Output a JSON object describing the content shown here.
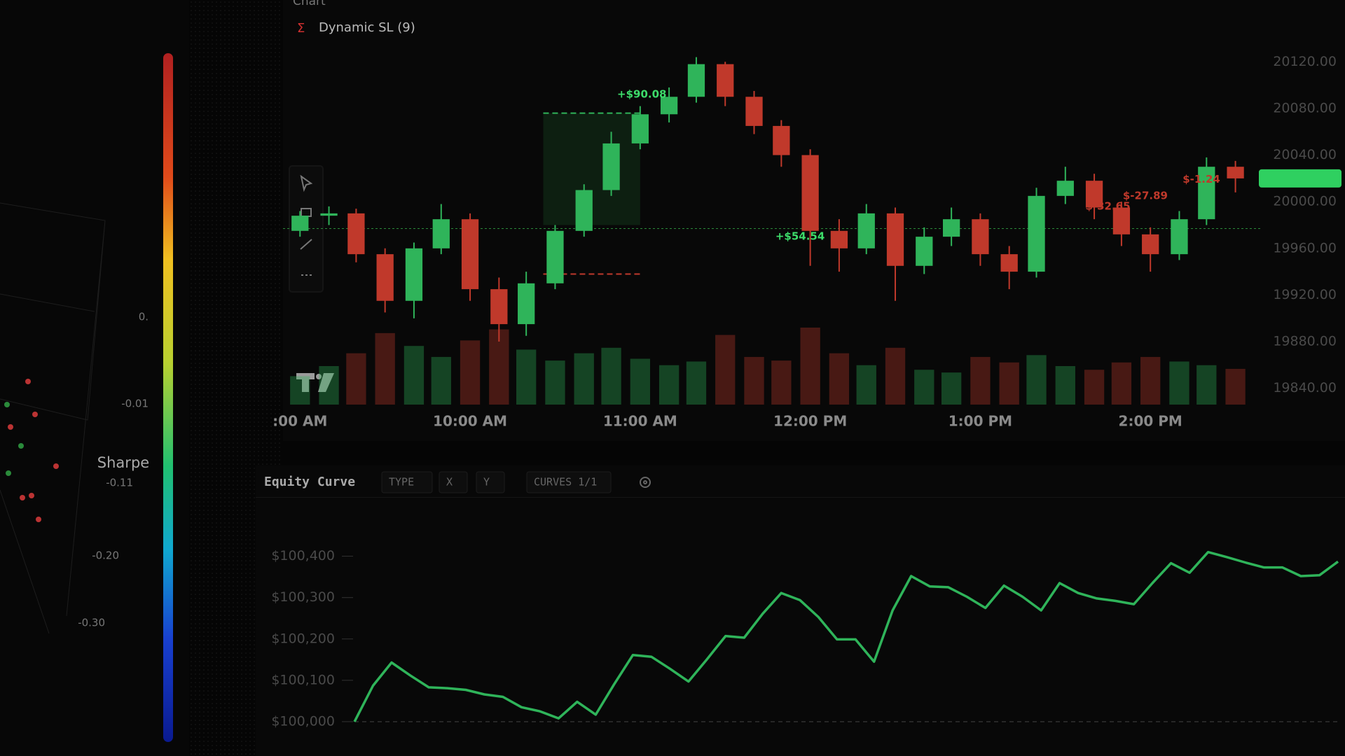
{
  "chart_panel": {
    "title": "Chart",
    "indicator": "Dynamic SL (9)",
    "indicator_icon": "Σ",
    "chart_data": {
      "type": "candlestick",
      "x": [
        9,
        9.17,
        9.33,
        9.5,
        9.67,
        9.83,
        10,
        10.17,
        10.33,
        10.5,
        10.67,
        10.83,
        11,
        11.17,
        11.33,
        11.5,
        11.67,
        11.83,
        12,
        12.17,
        12.33,
        12.5,
        12.67,
        12.83,
        13,
        13.17,
        13.33,
        13.5,
        13.67,
        13.83,
        14,
        14.17,
        14.33,
        14.5
      ],
      "open": [
        19975,
        19988,
        19990,
        19955,
        19915,
        19960,
        19985,
        19925,
        19895,
        19930,
        19975,
        20010,
        20050,
        20075,
        20090,
        20118,
        20090,
        20065,
        20040,
        19975,
        19960,
        19990,
        19945,
        19970,
        19985,
        19955,
        19940,
        20005,
        20018,
        19995,
        19972,
        19955,
        19985,
        20030
      ],
      "high": [
        19992,
        19996,
        19994,
        19960,
        19965,
        19998,
        19990,
        19935,
        19940,
        19980,
        20015,
        20060,
        20082,
        20098,
        20124,
        20120,
        20095,
        20070,
        20045,
        19985,
        19998,
        19995,
        19978,
        19995,
        19990,
        19962,
        20012,
        20030,
        20024,
        20000,
        19978,
        19992,
        20038,
        20035
      ],
      "low": [
        19970,
        19980,
        19948,
        19905,
        19900,
        19955,
        19915,
        19880,
        19885,
        19925,
        19970,
        20005,
        20045,
        20068,
        20085,
        20082,
        20058,
        20030,
        19945,
        19940,
        19955,
        19915,
        19938,
        19962,
        19945,
        19925,
        19935,
        19998,
        19985,
        19962,
        19940,
        19950,
        19980,
        20008
      ],
      "close": [
        19988,
        19990,
        19955,
        19915,
        19960,
        19985,
        19925,
        19895,
        19930,
        19975,
        20010,
        20050,
        20075,
        20090,
        20118,
        20090,
        20065,
        20040,
        19975,
        19960,
        19990,
        19945,
        19970,
        19985,
        19955,
        19940,
        20005,
        20018,
        19995,
        19972,
        19955,
        19985,
        20030,
        20020
      ],
      "volume": [
        310,
        420,
        560,
        780,
        640,
        520,
        700,
        820,
        600,
        480,
        560,
        620,
        500,
        430,
        470,
        760,
        520,
        480,
        840,
        560,
        430,
        620,
        380,
        350,
        520,
        460,
        540,
        420,
        380,
        460,
        520,
        470,
        430,
        390
      ],
      "up_color": "#2fb45a",
      "down_color": "#c0392b",
      "xlim": [
        8.9,
        14.65
      ],
      "ylim": [
        19826,
        20143
      ],
      "xticks": [
        {
          "value": 9,
          "label": ":00 AM"
        },
        {
          "value": 10,
          "label": "10:00 AM"
        },
        {
          "value": 11,
          "label": "11:00 AM"
        },
        {
          "value": 12,
          "label": "12:00 PM"
        },
        {
          "value": 13,
          "label": "1:00 PM"
        },
        {
          "value": 14,
          "label": "2:00 PM"
        }
      ],
      "yticks": [
        {
          "value": 20120,
          "label": "20120.00"
        },
        {
          "value": 20080,
          "label": "20080.00"
        },
        {
          "value": 20040,
          "label": "20040.00"
        },
        {
          "value": 20000,
          "label": "20000.00"
        },
        {
          "value": 19960,
          "label": "19960.00"
        },
        {
          "value": 19920,
          "label": "19920.00"
        },
        {
          "value": 19880,
          "label": "19880.00"
        },
        {
          "value": 19840,
          "label": "19840.00"
        }
      ],
      "reference_line": 19977,
      "last_price": 20020,
      "trade": {
        "x": [
          10.43,
          11.0
        ],
        "entry": 19980,
        "target": 20076,
        "stop": 19938
      },
      "annotations": [
        {
          "text": "+$90.08",
          "x": 11.01,
          "y": 20092,
          "color": "#3ddc6a"
        },
        {
          "text": "+$54.54",
          "x": 11.94,
          "y": 19970,
          "color": "#3ddc6a"
        },
        {
          "text": "$-32.65",
          "x": 13.75,
          "y": 19996,
          "color": "#c0392b"
        },
        {
          "text": "$-27.89",
          "x": 13.97,
          "y": 20005,
          "color": "#c0392b"
        },
        {
          "text": "$-1.24",
          "x": 14.3,
          "y": 20019,
          "color": "#c0392b"
        }
      ]
    }
  },
  "equity_panel": {
    "title": "Equity Curve",
    "controls": [
      "TYPE",
      "X",
      "Y",
      "CURVES 1/1"
    ],
    "chart_data": {
      "type": "line",
      "color": "#2fb45a",
      "values": [
        100000,
        100087,
        100143,
        100112,
        100083,
        100081,
        100077,
        100066,
        100060,
        100035,
        100025,
        100008,
        100048,
        100017,
        100091,
        100161,
        100157,
        100128,
        100097,
        100151,
        100207,
        100203,
        100261,
        100311,
        100294,
        100253,
        100199,
        100199,
        100145,
        100269,
        100352,
        100327,
        100325,
        100302,
        100275,
        100329,
        100302,
        100269,
        100335,
        100311,
        100298,
        100292,
        100284,
        100335,
        100383,
        100360,
        100410,
        100398,
        100385,
        100373,
        100373,
        100352,
        100354,
        100387
      ],
      "ylim": [
        99950,
        100510
      ],
      "baseline": 100000,
      "yticks": [
        {
          "value": 100400,
          "label": "$100,400"
        },
        {
          "value": 100300,
          "label": "$100,300"
        },
        {
          "value": 100200,
          "label": "$100,200"
        },
        {
          "value": 100100,
          "label": "$100,100"
        },
        {
          "value": 100000,
          "label": "$100,000"
        }
      ]
    }
  },
  "surface_panel": {
    "colorbar_label": "Sharpe",
    "tick_labels": [
      "0.",
      "-0.01",
      "-0.11",
      "-0.20",
      "-0.30"
    ]
  }
}
